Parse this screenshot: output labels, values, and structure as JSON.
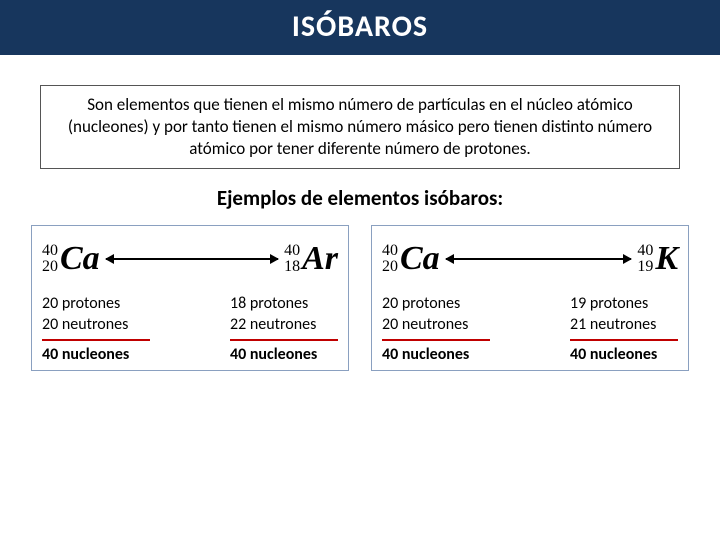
{
  "title": "ISÓBAROS",
  "definition": "Son elementos que tienen el mismo número de partículas en el núcleo atómico (nucleones) y por tanto tienen el mismo número másico pero tienen distinto número atómico por tener diferente número de protones.",
  "examples_title": "Ejemplos de elementos isóbaros:",
  "colors": {
    "title_bg": "#17365d",
    "title_text": "#ffffff",
    "panel_border": "#8aa0c0",
    "rule": "#c00000",
    "text": "#000000"
  },
  "panels": [
    {
      "left": {
        "mass": "40",
        "atomic": "20",
        "symbol": "Ca",
        "protons": "20 protones",
        "neutrons": "20 neutrones",
        "total": "40 nucleones"
      },
      "right": {
        "mass": "40",
        "atomic": "18",
        "symbol": "Ar",
        "protons": "18 protones",
        "neutrons": "22 neutrones",
        "total": "40 nucleones"
      }
    },
    {
      "left": {
        "mass": "40",
        "atomic": "20",
        "symbol": "Ca",
        "protons": "20 protones",
        "neutrons": "20 neutrones",
        "total": "40 nucleones"
      },
      "right": {
        "mass": "40",
        "atomic": "19",
        "symbol": "K",
        "protons": "19 protones",
        "neutrons": "21 neutrones",
        "total": "40 nucleones"
      }
    }
  ]
}
